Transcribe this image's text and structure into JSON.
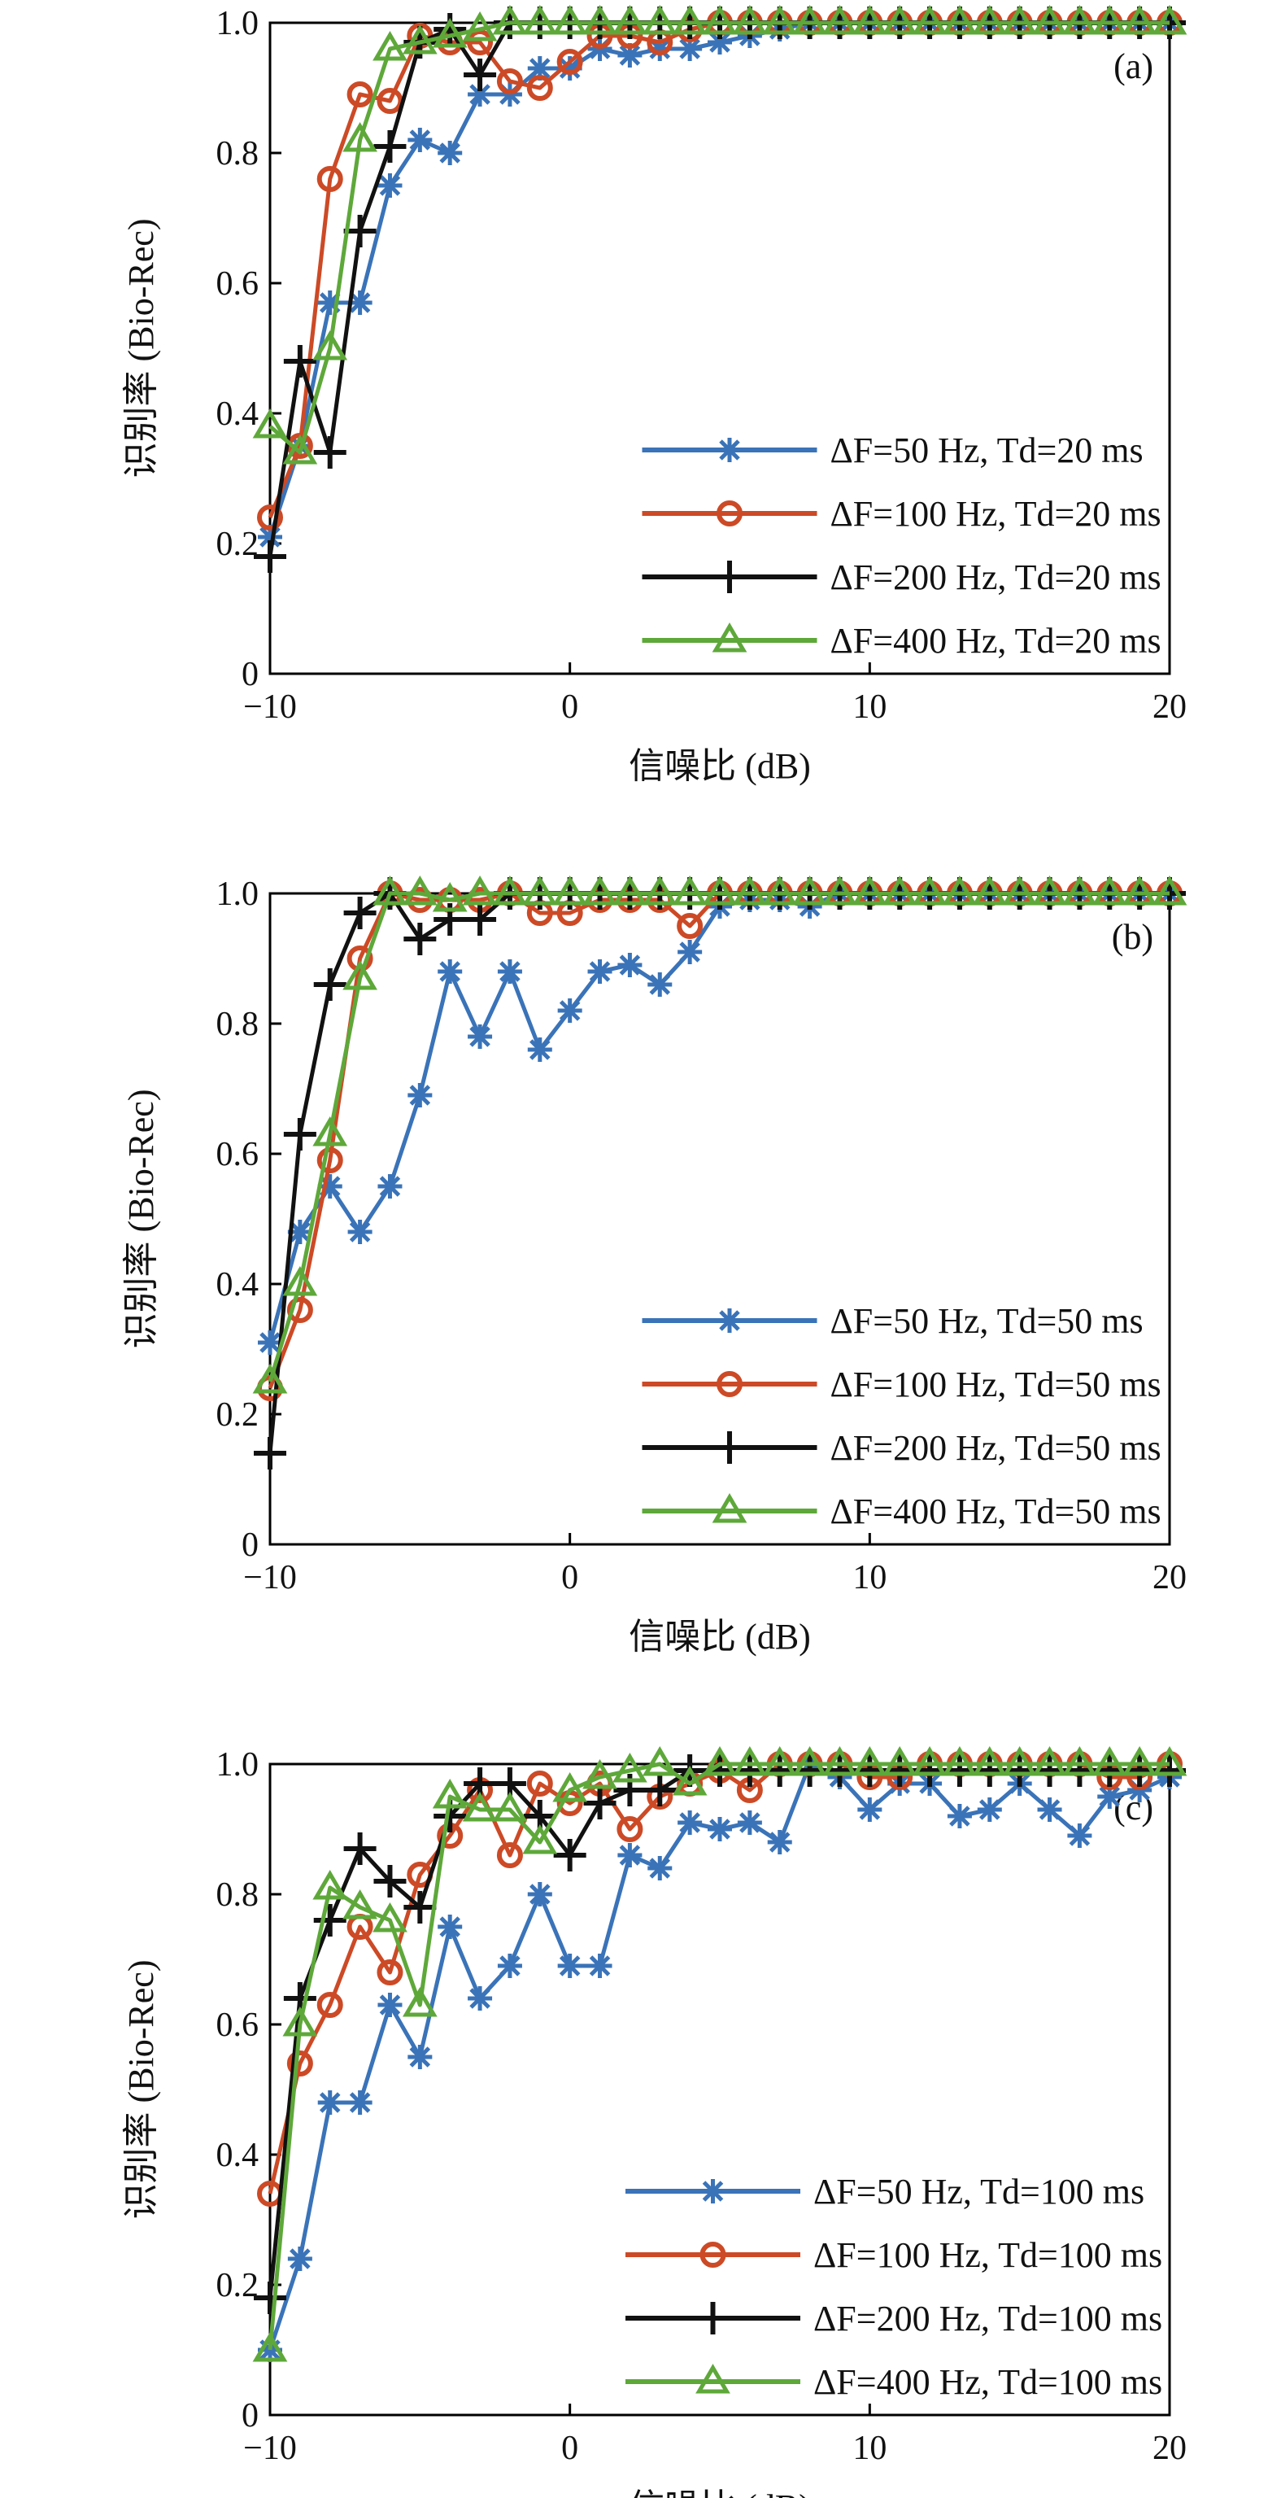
{
  "chart_data": [
    {
      "type": "line",
      "panel_label": "(a)",
      "xlabel": "信噪比 (dB)",
      "ylabel": "识别率 (Bio-Rec)",
      "xlim": [
        -10,
        20
      ],
      "ylim": [
        0,
        1
      ],
      "xticks": [
        "−10",
        "0",
        "10",
        "20"
      ],
      "yticks": [
        "0",
        "0.2",
        "0.4",
        "0.6",
        "0.8",
        "1.0"
      ],
      "legend_position": "lower-right",
      "x": [
        -10,
        -9,
        -8,
        -7,
        -6,
        -5,
        -4,
        -3,
        -2,
        -1,
        0,
        1,
        2,
        3,
        4,
        5,
        6,
        7,
        8,
        9,
        10,
        11,
        12,
        13,
        14,
        15,
        16,
        17,
        18,
        19,
        20
      ],
      "series": [
        {
          "name": "ΔF=50 Hz, Td=20 ms",
          "color": "#3a73b8",
          "marker": "asterisk",
          "values": [
            0.21,
            0.35,
            0.57,
            0.57,
            0.75,
            0.82,
            0.8,
            0.89,
            0.89,
            0.93,
            0.93,
            0.96,
            0.95,
            0.96,
            0.96,
            0.97,
            0.98,
            0.99,
            1.0,
            1.0,
            1.0,
            1.0,
            1.0,
            1.0,
            1.0,
            1.0,
            1.0,
            1.0,
            1.0,
            1.0,
            1.0
          ]
        },
        {
          "name": "ΔF=100 Hz, Td=20 ms",
          "color": "#cc4a26",
          "marker": "circle",
          "values": [
            0.24,
            0.35,
            0.76,
            0.89,
            0.88,
            0.98,
            0.97,
            0.97,
            0.91,
            0.9,
            0.94,
            0.98,
            0.98,
            0.97,
            0.99,
            1.0,
            1.0,
            1.0,
            1.0,
            1.0,
            1.0,
            1.0,
            1.0,
            1.0,
            1.0,
            1.0,
            1.0,
            1.0,
            1.0,
            1.0,
            1.0
          ]
        },
        {
          "name": "ΔF=200 Hz, Td=20 ms",
          "color": "#111111",
          "marker": "plus",
          "values": [
            0.18,
            0.48,
            0.34,
            0.68,
            0.81,
            0.97,
            0.99,
            0.92,
            1.0,
            1.0,
            1.0,
            1.0,
            1.0,
            1.0,
            1.0,
            1.0,
            1.0,
            1.0,
            1.0,
            1.0,
            1.0,
            1.0,
            1.0,
            1.0,
            1.0,
            1.0,
            1.0,
            1.0,
            1.0,
            1.0,
            1.0
          ]
        },
        {
          "name": "ΔF=400 Hz, Td=20 ms",
          "color": "#5ea83a",
          "marker": "triangle",
          "values": [
            0.38,
            0.34,
            0.5,
            0.82,
            0.96,
            0.97,
            0.98,
            0.99,
            1.0,
            1.0,
            1.0,
            1.0,
            1.0,
            1.0,
            1.0,
            1.0,
            1.0,
            1.0,
            1.0,
            1.0,
            1.0,
            1.0,
            1.0,
            1.0,
            1.0,
            1.0,
            1.0,
            1.0,
            1.0,
            1.0,
            1.0
          ]
        }
      ]
    },
    {
      "type": "line",
      "panel_label": "(b)",
      "xlabel": "信噪比 (dB)",
      "ylabel": "识别率 (Bio-Rec)",
      "xlim": [
        -10,
        20
      ],
      "ylim": [
        0,
        1
      ],
      "xticks": [
        "−10",
        "0",
        "10",
        "20"
      ],
      "yticks": [
        "0",
        "0.2",
        "0.4",
        "0.6",
        "0.8",
        "1.0"
      ],
      "legend_position": "lower-right",
      "x": [
        -10,
        -9,
        -8,
        -7,
        -6,
        -5,
        -4,
        -3,
        -2,
        -1,
        0,
        1,
        2,
        3,
        4,
        5,
        6,
        7,
        8,
        9,
        10,
        11,
        12,
        13,
        14,
        15,
        16,
        17,
        18,
        19,
        20
      ],
      "series": [
        {
          "name": "ΔF=50 Hz, Td=50 ms",
          "color": "#3a73b8",
          "marker": "asterisk",
          "values": [
            0.31,
            0.48,
            0.55,
            0.48,
            0.55,
            0.69,
            0.88,
            0.78,
            0.88,
            0.76,
            0.82,
            0.88,
            0.89,
            0.86,
            0.91,
            0.98,
            0.99,
            0.99,
            0.98,
            1.0,
            1.0,
            1.0,
            1.0,
            1.0,
            1.0,
            1.0,
            1.0,
            1.0,
            1.0,
            1.0,
            1.0
          ]
        },
        {
          "name": "ΔF=100 Hz, Td=50 ms",
          "color": "#cc4a26",
          "marker": "circle",
          "values": [
            0.24,
            0.36,
            0.59,
            0.9,
            1.0,
            0.99,
            0.99,
            0.99,
            1.0,
            0.97,
            0.97,
            0.99,
            0.99,
            0.99,
            0.95,
            1.0,
            1.0,
            1.0,
            1.0,
            1.0,
            1.0,
            1.0,
            1.0,
            1.0,
            1.0,
            1.0,
            1.0,
            1.0,
            1.0,
            1.0,
            1.0
          ]
        },
        {
          "name": "ΔF=200 Hz, Td=50 ms",
          "color": "#111111",
          "marker": "plus",
          "values": [
            0.14,
            0.63,
            0.86,
            0.97,
            1.0,
            0.93,
            0.96,
            0.96,
            1.0,
            1.0,
            1.0,
            1.0,
            1.0,
            1.0,
            1.0,
            1.0,
            1.0,
            1.0,
            1.0,
            1.0,
            1.0,
            1.0,
            1.0,
            1.0,
            1.0,
            1.0,
            1.0,
            1.0,
            1.0,
            1.0,
            1.0
          ]
        },
        {
          "name": "ΔF=400 Hz, Td=50 ms",
          "color": "#5ea83a",
          "marker": "triangle",
          "values": [
            0.25,
            0.4,
            0.63,
            0.87,
            1.0,
            1.0,
            0.99,
            1.0,
            1.0,
            1.0,
            1.0,
            1.0,
            1.0,
            1.0,
            1.0,
            1.0,
            1.0,
            1.0,
            1.0,
            1.0,
            1.0,
            1.0,
            1.0,
            1.0,
            1.0,
            1.0,
            1.0,
            1.0,
            1.0,
            1.0,
            1.0
          ]
        }
      ]
    },
    {
      "type": "line",
      "panel_label": "(c)",
      "xlabel": "信噪比 (dB)",
      "ylabel": "识别率 (Bio-Rec)",
      "xlim": [
        -10,
        20
      ],
      "ylim": [
        0,
        1
      ],
      "xticks": [
        "−10",
        "0",
        "10",
        "20"
      ],
      "yticks": [
        "0",
        "0.2",
        "0.4",
        "0.6",
        "0.8",
        "1.0"
      ],
      "legend_position": "lower-right",
      "x": [
        -10,
        -9,
        -8,
        -7,
        -6,
        -5,
        -4,
        -3,
        -2,
        -1,
        0,
        1,
        2,
        3,
        4,
        5,
        6,
        7,
        8,
        9,
        10,
        11,
        12,
        13,
        14,
        15,
        16,
        17,
        18,
        19,
        20
      ],
      "series": [
        {
          "name": "ΔF=50 Hz, Td=100 ms",
          "color": "#3a73b8",
          "marker": "asterisk",
          "values": [
            0.1,
            0.24,
            0.48,
            0.48,
            0.63,
            0.55,
            0.75,
            0.64,
            0.69,
            0.8,
            0.69,
            0.69,
            0.86,
            0.84,
            0.91,
            0.9,
            0.91,
            0.88,
            1.0,
            0.98,
            0.93,
            0.97,
            0.97,
            0.92,
            0.93,
            0.97,
            0.93,
            0.89,
            0.95,
            0.96,
            0.98
          ]
        },
        {
          "name": "ΔF=100 Hz, Td=100 ms",
          "color": "#cc4a26",
          "marker": "circle",
          "values": [
            0.34,
            0.54,
            0.63,
            0.75,
            0.68,
            0.83,
            0.89,
            0.96,
            0.86,
            0.97,
            0.94,
            0.97,
            0.9,
            0.95,
            0.97,
            0.99,
            0.96,
            1.0,
            1.0,
            1.0,
            0.98,
            0.98,
            1.0,
            1.0,
            1.0,
            1.0,
            1.0,
            1.0,
            0.98,
            0.98,
            1.0
          ]
        },
        {
          "name": "ΔF=200 Hz, Td=100 ms",
          "color": "#111111",
          "marker": "plus",
          "values": [
            0.18,
            0.64,
            0.76,
            0.87,
            0.82,
            0.78,
            0.92,
            0.97,
            0.97,
            0.92,
            0.86,
            0.94,
            0.96,
            0.96,
            0.99,
            0.99,
            0.99,
            0.99,
            0.99,
            0.99,
            0.99,
            0.99,
            0.99,
            0.99,
            0.99,
            0.99,
            0.99,
            0.99,
            0.99,
            0.99,
            0.99
          ]
        },
        {
          "name": "ΔF=400 Hz, Td=100 ms",
          "color": "#5ea83a",
          "marker": "triangle",
          "values": [
            0.1,
            0.6,
            0.81,
            0.78,
            0.76,
            0.63,
            0.95,
            0.93,
            0.93,
            0.88,
            0.96,
            0.98,
            0.99,
            1.0,
            0.97,
            1.0,
            1.0,
            1.0,
            1.0,
            1.0,
            1.0,
            1.0,
            1.0,
            1.0,
            1.0,
            1.0,
            1.0,
            1.0,
            1.0,
            1.0,
            1.0
          ]
        }
      ]
    }
  ]
}
